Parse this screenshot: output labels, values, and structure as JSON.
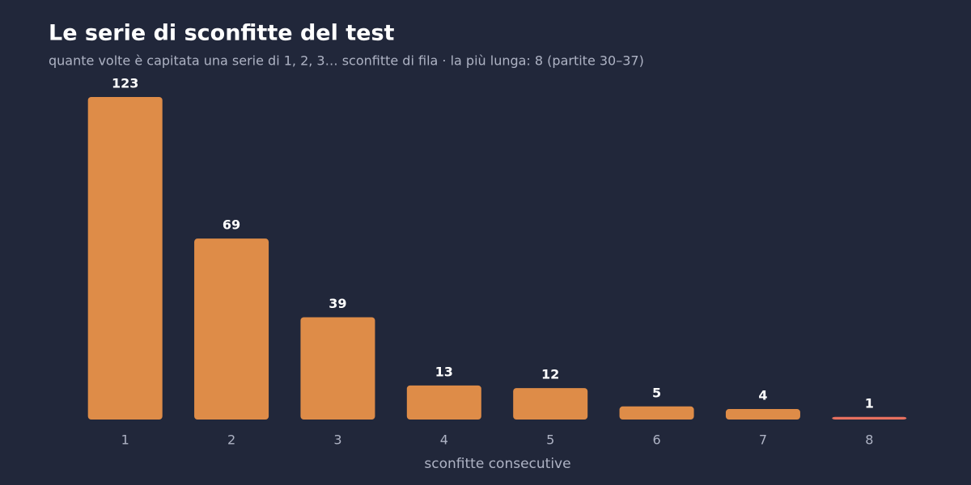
{
  "chart_data": {
    "type": "bar",
    "title": "Le serie di sconfitte del test",
    "subtitle": "quante volte è capitata una serie di 1, 2, 3… sconfitte di fila · la più lunga: 8 (partite 30–37)",
    "x_label": "sconfitte consecutive",
    "categories": [
      "1",
      "2",
      "3",
      "4",
      "5",
      "6",
      "7",
      "8"
    ],
    "values": [
      123,
      69,
      39,
      13,
      12,
      5,
      4,
      1
    ],
    "colors": [
      "#de8c48",
      "#de8c48",
      "#de8c48",
      "#de8c48",
      "#de8c48",
      "#de8c48",
      "#de8c48",
      "#e8705f"
    ]
  }
}
